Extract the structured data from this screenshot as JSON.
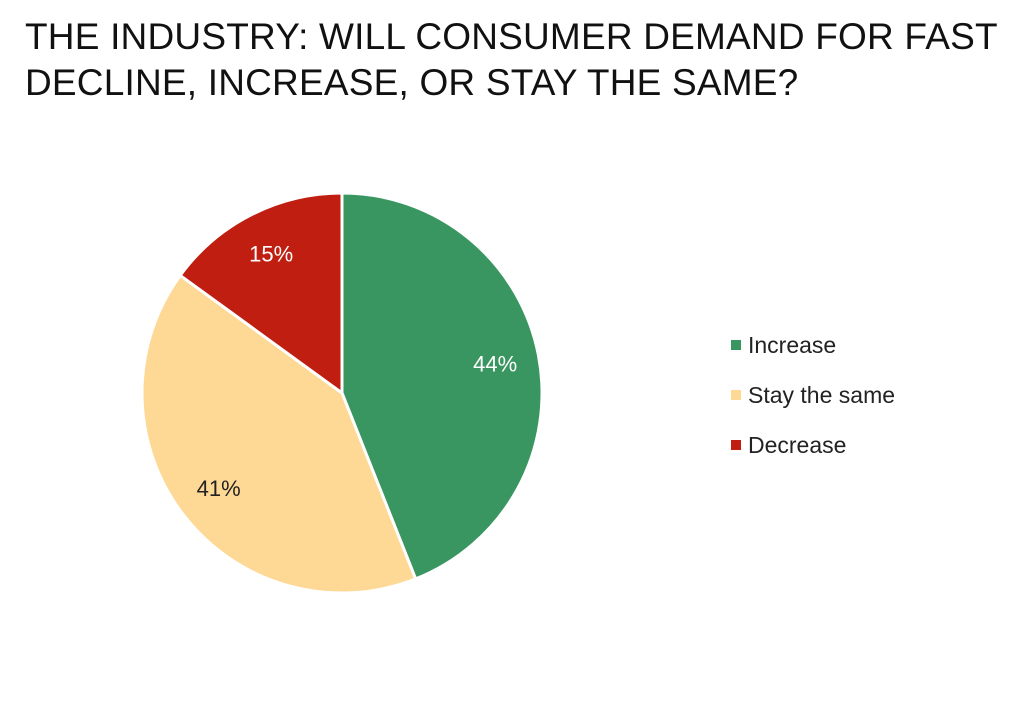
{
  "title_lines": [
    "THE INDUSTRY: WILL CONSUMER DEMAND FOR FAST",
    "DECLINE, INCREASE, OR STAY THE SAME?"
  ],
  "chart_data": {
    "type": "pie",
    "title": "THE INDUSTRY: WILL CONSUMER DEMAND FOR FAST DECLINE, INCREASE, OR STAY THE SAME?",
    "categories": [
      "Increase",
      "Stay the same",
      "Decrease"
    ],
    "values": [
      44,
      41,
      15
    ],
    "labels": [
      "44%",
      "41%",
      "15%"
    ],
    "colors": [
      "#3a9660",
      "#fed895",
      "#bf1e10"
    ],
    "label_colors": [
      "#ffffff",
      "#222222",
      "#ffffff"
    ],
    "legend_position": "right"
  }
}
